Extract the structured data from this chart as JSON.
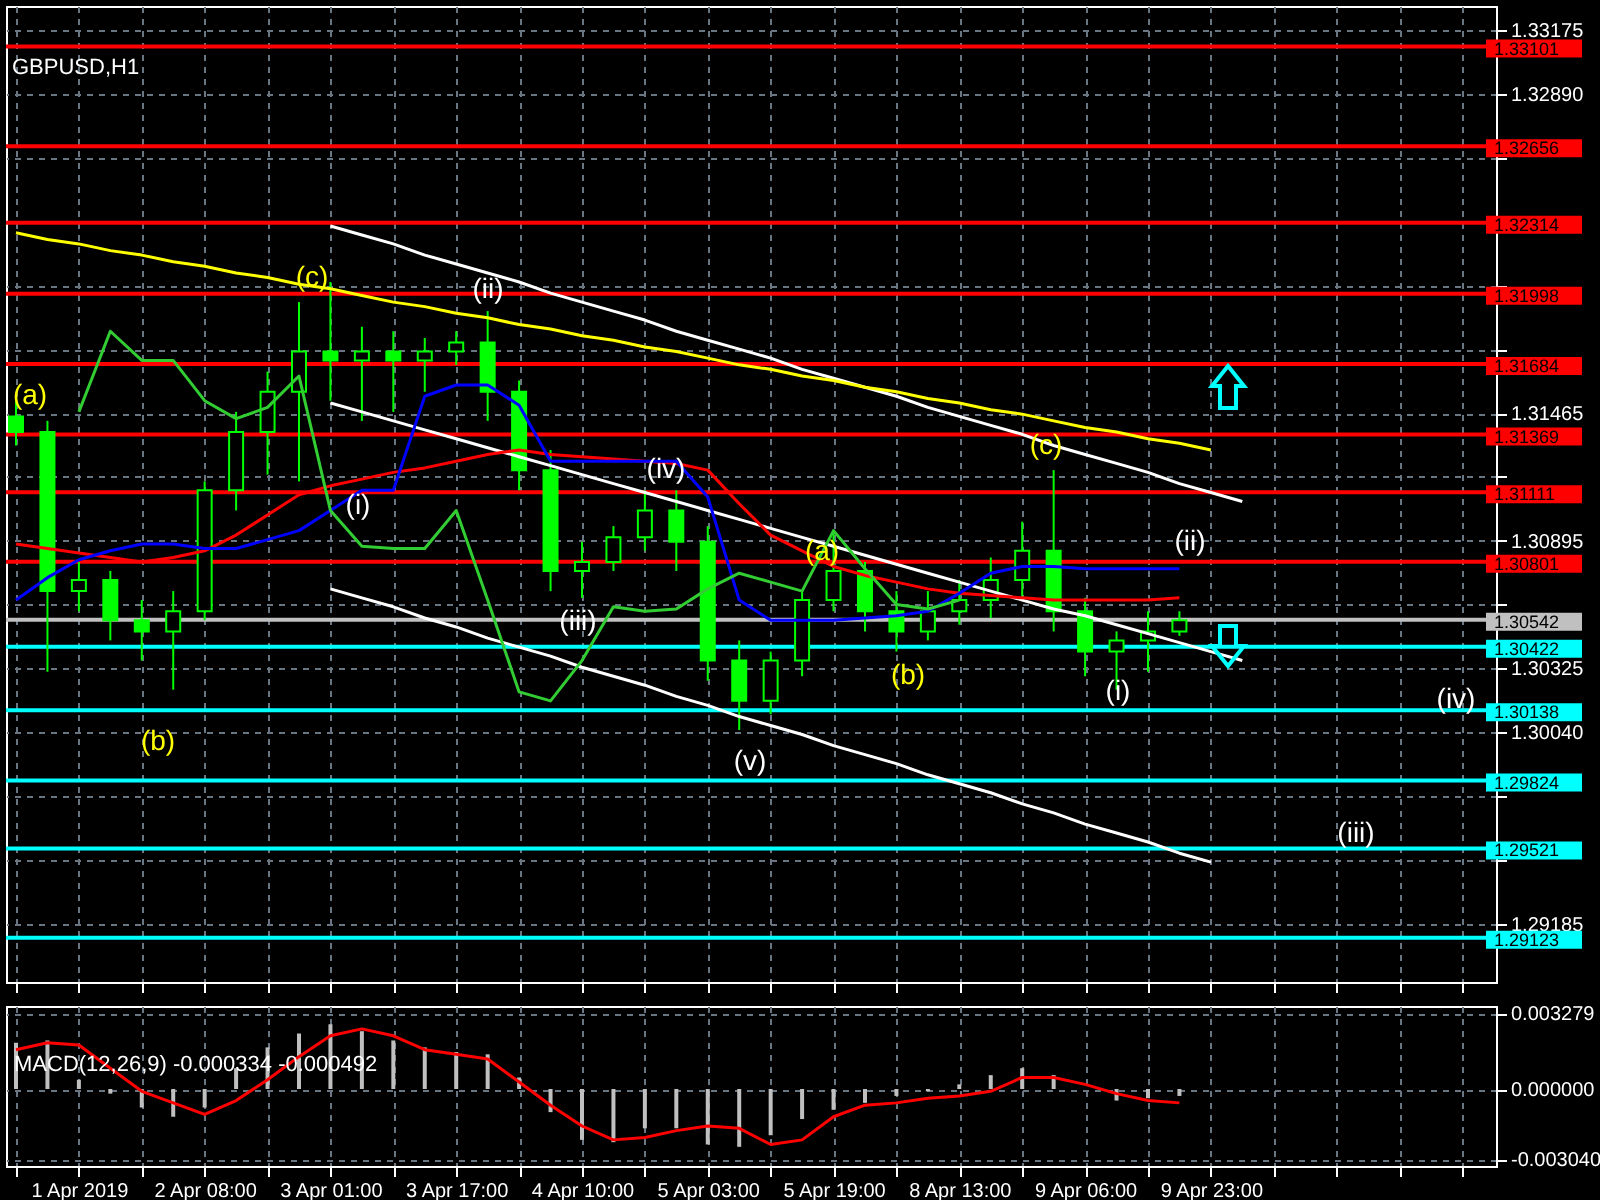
{
  "chart_data": [
    {
      "type": "candlestick",
      "title": "GBPUSD,H1",
      "categories": [
        null,
        null,
        null,
        null,
        null,
        null,
        null,
        null,
        null,
        null,
        null,
        null,
        null,
        null,
        null,
        null,
        null,
        null,
        null,
        null,
        null,
        null,
        null,
        null,
        null,
        null,
        null,
        null,
        null,
        null,
        null,
        null,
        null,
        null,
        null,
        null,
        null,
        null,
        null,
        null,
        null,
        null,
        null,
        null,
        null,
        null,
        null
      ],
      "series": [
        {
          "type": "line",
          "color": "#ffffff",
          "values": [
            null,
            null,
            null,
            null,
            null,
            null,
            null,
            null,
            null,
            null,
            1.323,
            1.3226,
            1.3222,
            1.3217,
            1.3213,
            1.3209,
            1.3205,
            1.32,
            1.3196,
            1.3192,
            1.3188,
            1.3183,
            1.3179,
            1.3175,
            1.3171,
            1.3166,
            1.3162,
            1.3158,
            1.3154,
            1.3149,
            1.3145,
            1.3141,
            1.3137,
            1.3132,
            1.3128,
            1.3124,
            1.312,
            1.3115,
            1.3111,
            1.3107,
            null,
            null,
            null,
            null,
            null,
            null,
            null
          ]
        },
        {
          "type": "line",
          "color": "#ffffff",
          "values": [
            null,
            null,
            null,
            null,
            null,
            null,
            null,
            null,
            null,
            null,
            1.3151,
            1.3147,
            1.3143,
            1.3139,
            1.3135,
            1.3131,
            1.3127,
            1.3123,
            1.3119,
            1.3115,
            1.3111,
            1.3107,
            1.3103,
            1.3099,
            1.3095,
            1.3091,
            1.3087,
            1.3083,
            1.3079,
            1.3075,
            1.3071,
            1.3067,
            1.3063,
            1.3059,
            1.3056,
            1.3052,
            1.3048,
            1.3044,
            1.304,
            1.3036,
            null,
            null,
            null,
            null,
            null,
            null,
            null
          ]
        },
        {
          "type": "line",
          "color": "#ffffff",
          "values": [
            null,
            null,
            null,
            null,
            null,
            null,
            null,
            null,
            null,
            null,
            1.3068,
            1.3064,
            1.306,
            1.3055,
            1.3051,
            1.3046,
            1.3042,
            1.3038,
            1.3033,
            1.3029,
            1.3025,
            1.302,
            1.3016,
            1.3011,
            1.3007,
            1.3003,
            1.2998,
            1.2994,
            1.299,
            1.2985,
            1.2981,
            1.2977,
            1.2972,
            1.2968,
            1.2963,
            1.2959,
            1.2955,
            1.295,
            1.2946,
            null,
            null,
            null,
            null,
            null,
            null,
            null,
            null
          ]
        },
        {
          "type": "line",
          "color": "#ffff00",
          "values": [
            1.3227,
            1.3224,
            1.3222,
            1.3219,
            1.3217,
            1.3214,
            1.3212,
            1.3209,
            1.3207,
            1.3204,
            1.3202,
            1.3199,
            1.3196,
            1.3194,
            1.3191,
            1.3189,
            1.3186,
            1.3184,
            1.3181,
            1.3179,
            1.3176,
            1.3174,
            1.3171,
            1.3168,
            1.3166,
            1.3163,
            1.3161,
            1.3158,
            1.3156,
            1.3153,
            1.3151,
            1.3148,
            1.3146,
            1.3143,
            1.314,
            1.3138,
            1.3135,
            1.3133,
            1.313,
            null,
            null,
            null,
            null,
            null,
            null,
            null,
            null
          ]
        },
        {
          "type": "line",
          "color": "#ff0000",
          "values": [
            1.3088,
            1.3086,
            1.3084,
            1.3082,
            1.308,
            1.3082,
            1.3085,
            1.3092,
            1.3101,
            1.311,
            1.3114,
            1.3117,
            1.312,
            1.3122,
            1.3125,
            1.3128,
            1.313,
            1.3128,
            1.3127,
            1.3126,
            1.3125,
            1.3124,
            1.3121,
            1.3106,
            1.3092,
            1.3085,
            1.3078,
            1.3074,
            1.3071,
            1.3068,
            1.3066,
            1.3065,
            1.3064,
            1.3063,
            1.3063,
            1.3063,
            1.3063,
            1.3064,
            null,
            null,
            null,
            null,
            null,
            null,
            null,
            null,
            null
          ]
        },
        {
          "type": "line",
          "color": "#0000ff",
          "values": [
            1.3063,
            1.3073,
            1.3081,
            1.3085,
            1.3088,
            1.3088,
            1.3086,
            1.3086,
            1.309,
            1.3094,
            1.3103,
            1.3112,
            1.3112,
            1.3154,
            1.3159,
            1.3159,
            1.315,
            1.3125,
            1.3125,
            1.3125,
            1.3125,
            1.3125,
            1.3109,
            1.3063,
            1.3054,
            1.3054,
            1.3054,
            1.3055,
            1.3056,
            1.3058,
            1.3066,
            1.3075,
            1.3078,
            1.3078,
            1.3077,
            1.3077,
            1.3077,
            1.3077,
            null,
            null,
            null,
            null,
            null,
            null,
            null,
            null,
            null
          ]
        },
        {
          "type": "line",
          "color": "#32cd32",
          "values": [
            null,
            null,
            1.3147,
            1.3183,
            1.317,
            1.317,
            1.3152,
            1.3144,
            1.3149,
            1.3163,
            1.3103,
            1.3087,
            1.3086,
            1.3086,
            1.3103,
            1.3063,
            1.3022,
            1.3018,
            1.3036,
            1.306,
            1.3058,
            1.3059,
            1.3068,
            1.3075,
            1.3071,
            1.3067,
            1.3094,
            1.3077,
            1.3061,
            1.3059,
            1.3063,
            null,
            null,
            null,
            null,
            null,
            null,
            null,
            null,
            null,
            null,
            null,
            null,
            null,
            null,
            null,
            null
          ]
        },
        {
          "color": "#00ff00",
          "ohlc": [
            [
              1.3145,
              1.3152,
              1.3132,
              1.3138
            ],
            [
              1.3138,
              1.3143,
              1.3031,
              1.3067
            ],
            [
              1.3067,
              1.308,
              1.3058,
              1.3072
            ],
            [
              1.3072,
              1.3076,
              1.3045,
              1.3054
            ],
            [
              1.3054,
              1.3063,
              1.3036,
              1.3049
            ],
            [
              1.3049,
              1.3067,
              1.3023,
              1.3058
            ],
            [
              1.3058,
              1.3116,
              1.3054,
              1.3112
            ],
            [
              1.3112,
              1.3147,
              1.3103,
              1.3138
            ],
            [
              1.3138,
              1.3165,
              1.3119,
              1.3156
            ],
            [
              1.3156,
              1.3196,
              1.3116,
              1.3174
            ],
            [
              1.3174,
              1.3205,
              1.3152,
              1.317
            ],
            [
              1.317,
              1.3185,
              1.3143,
              1.3174
            ],
            [
              1.3174,
              1.3183,
              1.3147,
              1.317
            ],
            [
              1.317,
              1.318,
              1.3156,
              1.3174
            ],
            [
              1.3174,
              1.3183,
              1.3168,
              1.3178
            ],
            [
              1.3178,
              1.3192,
              1.3143,
              1.3156
            ],
            [
              1.3156,
              1.3161,
              1.3112,
              1.3121
            ],
            [
              1.3121,
              1.313,
              1.3067,
              1.3076
            ],
            [
              1.3076,
              1.3089,
              1.3064,
              1.308
            ],
            [
              1.308,
              1.3096,
              1.3076,
              1.3091
            ],
            [
              1.3091,
              1.3112,
              1.3085,
              1.3103
            ],
            [
              1.3103,
              1.3112,
              1.3076,
              1.3089
            ],
            [
              1.3089,
              1.3096,
              1.3027,
              1.3036
            ],
            [
              1.3036,
              1.3045,
              1.3005,
              1.3018
            ],
            [
              1.3018,
              1.304,
              1.3012,
              1.3036
            ],
            [
              1.3036,
              1.3067,
              1.3029,
              1.3063
            ],
            [
              1.3063,
              1.3094,
              1.3058,
              1.3076
            ],
            [
              1.3076,
              1.308,
              1.3049,
              1.3058
            ],
            [
              1.3058,
              1.3067,
              1.304,
              1.3049
            ],
            [
              1.3049,
              1.3067,
              1.3045,
              1.3058
            ],
            [
              1.3058,
              1.3072,
              1.3052,
              1.3063
            ],
            [
              1.3063,
              1.3082,
              1.3055,
              1.3072
            ],
            [
              1.3072,
              1.3098,
              1.3064,
              1.3085
            ],
            [
              1.3085,
              1.3121,
              1.3049,
              1.3058
            ],
            [
              1.3058,
              1.3064,
              1.3029,
              1.304
            ],
            [
              1.304,
              1.3049,
              1.3023,
              1.3045
            ],
            [
              1.3045,
              1.3058,
              1.3031,
              1.3049
            ],
            [
              1.3049,
              1.3058,
              1.3047,
              1.3054
            ],
            null,
            null,
            null,
            null,
            null,
            null,
            null,
            null,
            null
          ]
        }
      ],
      "ref_lines": [
        {
          "axis": "y",
          "value": 1.33101,
          "label": "1.33101",
          "color": "#ff0000"
        },
        {
          "axis": "y",
          "value": 1.32656,
          "label": "1.32656",
          "color": "#ff0000"
        },
        {
          "axis": "y",
          "value": 1.32314,
          "label": "1.32314",
          "color": "#ff0000"
        },
        {
          "axis": "y",
          "value": 1.31998,
          "label": "1.31998",
          "color": "#ff0000"
        },
        {
          "axis": "y",
          "value": 1.31684,
          "label": "1.31684",
          "color": "#ff0000"
        },
        {
          "axis": "y",
          "value": 1.31369,
          "label": "1.31369",
          "color": "#ff0000"
        },
        {
          "axis": "y",
          "value": 1.31111,
          "label": "1.31111",
          "color": "#ff0000"
        },
        {
          "axis": "y",
          "value": 1.30801,
          "label": "1.30801",
          "color": "#ff0000"
        },
        {
          "axis": "y",
          "value": 1.30542,
          "label": "1.30542",
          "color": "#c0c0c0"
        },
        {
          "axis": "y",
          "value": 1.30422,
          "label": "1.30422",
          "color": "#00ffff"
        },
        {
          "axis": "y",
          "value": 1.30138,
          "label": "1.30138",
          "color": "#00ffff"
        },
        {
          "axis": "y",
          "value": 1.29824,
          "label": "1.29824",
          "color": "#00ffff"
        },
        {
          "axis": "y",
          "value": 1.29521,
          "label": "1.29521",
          "color": "#00ffff"
        },
        {
          "axis": "y",
          "value": 1.29123,
          "label": "1.29123",
          "color": "#00ffff"
        }
      ],
      "annotations": [
        "(a)",
        "(b)",
        "(c)",
        "(a)",
        "(b)",
        "(c)",
        "(i)",
        "(ii)",
        "(iii)",
        "(iv)",
        "(v)",
        "(i)",
        "(ii)",
        "(iii)",
        "(iv)"
      ],
      "ylim": [
        1.28925,
        1.33282
      ],
      "yticks": [
        1.33175,
        {
          "value": 1.3289,
          "label": "1.32890"
        },
        {
          "value": 1.32605,
          "label": null
        },
        {
          "value": 1.3232,
          "label": null
        },
        {
          "value": 1.32035,
          "label": null
        },
        {
          "value": 1.3175,
          "label": null
        },
        1.31465,
        {
          "value": 1.3118,
          "label": null
        },
        1.30895,
        {
          "value": 1.3061,
          "label": null
        },
        1.30325,
        {
          "value": 1.3004,
          "label": "1.30040"
        },
        {
          "value": 1.29755,
          "label": null
        },
        {
          "value": 1.2947,
          "label": null
        },
        1.29185
      ],
      "grid": true,
      "tick_labels": "y"
    },
    {
      "type": "bar",
      "title": "MACD(12,26,9) -0.000334 -0.000492",
      "categories": [
        null,
        null,
        "1 Apr 2019",
        null,
        null,
        null,
        "2 Apr 08:00",
        null,
        null,
        null,
        "3 Apr 01:00",
        null,
        null,
        null,
        "3 Apr 17:00",
        null,
        null,
        null,
        "4 Apr 10:00",
        null,
        null,
        null,
        "5 Apr 03:00",
        null,
        null,
        null,
        "5 Apr 19:00",
        null,
        null,
        null,
        "8 Apr 13:00",
        null,
        null,
        null,
        "9 Apr 06:00",
        null,
        null,
        null,
        "9 Apr 23:00",
        null,
        null,
        null,
        null,
        null,
        null,
        null,
        null
      ],
      "series": [
        {
          "color": "#c0c0c0",
          "values": [
            0.002,
            0.0021,
            0.0004,
            -0.0002,
            -0.0008,
            -0.0012,
            -0.0008,
            0.0009,
            0.0018,
            0.0024,
            0.0028,
            0.0025,
            0.0021,
            0.0018,
            0.0016,
            0.0015,
            0.0005,
            -0.001,
            -0.0022,
            -0.0023,
            -0.0017,
            -0.0017,
            -0.0024,
            -0.0025,
            -0.002,
            -0.0013,
            -0.0009,
            -0.0006,
            -0.0003,
            -0.0001,
            0.0002,
            0.0006,
            0.0009,
            0.0006,
            0.0,
            -0.0005,
            -0.0004,
            -0.0003,
            null,
            null,
            null,
            null,
            null,
            null,
            null,
            null,
            null
          ]
        },
        {
          "type": "line",
          "color": "#ff0000",
          "values": [
            0.0017,
            0.002,
            0.0019,
            0.0009,
            -0.0001,
            -0.0006,
            -0.0011,
            -0.0005,
            0.0004,
            0.0014,
            0.0023,
            0.0026,
            0.0023,
            0.0017,
            0.0015,
            0.0013,
            0.0003,
            -0.0007,
            -0.0016,
            -0.0022,
            -0.0021,
            -0.0018,
            -0.0016,
            -0.0017,
            -0.0024,
            -0.0022,
            -0.0012,
            -0.0007,
            -0.0006,
            -0.0004,
            -0.0003,
            -0.0001,
            0.0005,
            0.0005,
            0.0002,
            -0.0002,
            -0.0005,
            -0.0006,
            null,
            null,
            null,
            null,
            null,
            null,
            null,
            null,
            null
          ]
        }
      ],
      "ylim": [
        -0.00333,
        0.00359
      ],
      "yticks": [
        0.003279,
        {
          "value": 0,
          "label": "0.000000"
        },
        {
          "value": -0.00304,
          "label": "-0.003040"
        }
      ],
      "grid": true
    }
  ]
}
